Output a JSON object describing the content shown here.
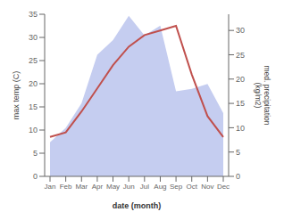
{
  "chart_data": {
    "type": "line",
    "categories": [
      "Jan",
      "Feb",
      "Mar",
      "Apr",
      "May",
      "Jun",
      "Jul",
      "Aug",
      "Sep",
      "Oct",
      "Nov",
      "Dec"
    ],
    "xlabel": "date (month)",
    "ylabel": "max temp (C)",
    "y2label": "med. precipitation\n(kg/m2)",
    "ylim": [
      0,
      35
    ],
    "yticks": [
      0,
      5,
      10,
      15,
      20,
      25,
      30,
      35
    ],
    "y2lim": [
      0,
      33.33
    ],
    "y2ticks": [
      0,
      5,
      10,
      15,
      20,
      25,
      30
    ],
    "grid": false,
    "series": [
      {
        "type": "area",
        "axis": "y2",
        "color": "#c5cdf0",
        "values": [
          7,
          10,
          15,
          25,
          28,
          33,
          29,
          31,
          17.5,
          18,
          19,
          13
        ]
      },
      {
        "type": "line",
        "axis": "y",
        "color": "#c0504d",
        "values": [
          8.5,
          9.5,
          14.0,
          19.0,
          24.0,
          28.0,
          30.5,
          31.5,
          32.5,
          22.0,
          13.0,
          8.5
        ]
      }
    ]
  }
}
